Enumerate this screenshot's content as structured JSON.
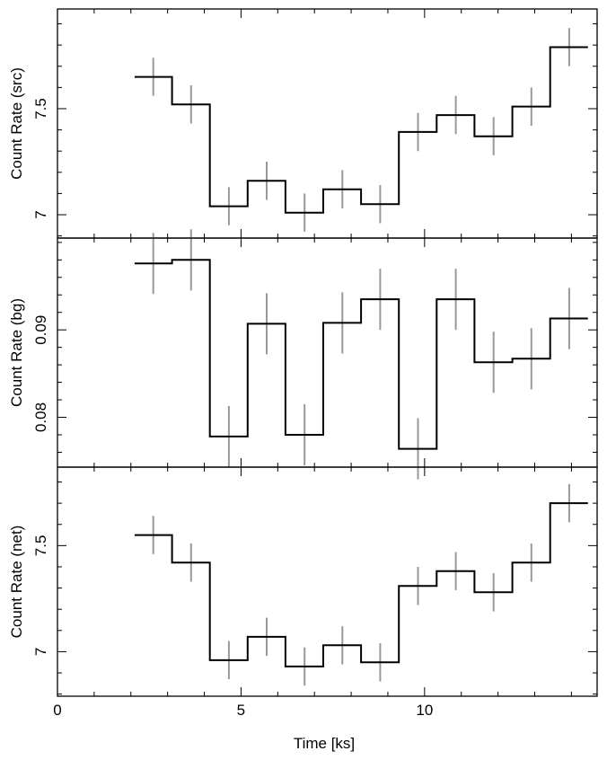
{
  "chart_data": [
    {
      "type": "line",
      "ylabel": "Count Rate (src)",
      "xlim": [
        0,
        14.7
      ],
      "ylim": [
        6.89,
        7.97
      ],
      "yticks": [
        7,
        7.5
      ],
      "ytick_labels": [
        "7",
        "7.5"
      ],
      "x": [
        2.61,
        3.64,
        4.67,
        5.7,
        6.73,
        7.76,
        8.79,
        9.82,
        10.85,
        11.88,
        12.91,
        13.94
      ],
      "bin_edges": [
        2.1,
        3.12,
        4.15,
        5.18,
        6.21,
        7.24,
        8.27,
        9.3,
        10.33,
        11.36,
        12.39,
        13.42,
        14.45
      ],
      "values": [
        7.65,
        7.52,
        7.04,
        7.16,
        7.01,
        7.12,
        7.05,
        7.39,
        7.47,
        7.37,
        7.51,
        7.79
      ],
      "errors": [
        0.09,
        0.09,
        0.09,
        0.09,
        0.09,
        0.09,
        0.09,
        0.09,
        0.09,
        0.09,
        0.09,
        0.09
      ]
    },
    {
      "type": "line",
      "ylabel": "Count Rate (bg)",
      "xlim": [
        0,
        14.7
      ],
      "ylim": [
        0.0743,
        0.1005
      ],
      "yticks": [
        0.08,
        0.09
      ],
      "ytick_labels": [
        "0.08",
        "0.09"
      ],
      "x": [
        2.61,
        3.64,
        4.67,
        5.7,
        6.73,
        7.76,
        8.79,
        9.82,
        10.85,
        11.88,
        12.91,
        13.94
      ],
      "bin_edges": [
        2.1,
        3.12,
        4.15,
        5.18,
        6.21,
        7.24,
        8.27,
        9.3,
        10.33,
        11.36,
        12.39,
        13.42,
        14.45
      ],
      "values": [
        0.0976,
        0.098,
        0.0778,
        0.0907,
        0.078,
        0.0908,
        0.0935,
        0.0764,
        0.0935,
        0.0863,
        0.0867,
        0.0913
      ],
      "errors": [
        0.0035,
        0.0035,
        0.0035,
        0.0035,
        0.0035,
        0.0035,
        0.0035,
        0.0035,
        0.0035,
        0.0035,
        0.0035,
        0.0035
      ]
    },
    {
      "type": "line",
      "ylabel": "Count Rate (net)",
      "xlabel": "Time [ks]",
      "xlim": [
        0,
        14.7
      ],
      "ylim": [
        6.79,
        7.87
      ],
      "xticks": [
        0,
        5,
        10
      ],
      "xtick_labels": [
        "0",
        "5",
        "10"
      ],
      "yticks": [
        7,
        7.5
      ],
      "ytick_labels": [
        "7",
        "7.5"
      ],
      "x": [
        2.61,
        3.64,
        4.67,
        5.7,
        6.73,
        7.76,
        8.79,
        9.82,
        10.85,
        11.88,
        12.91,
        13.94
      ],
      "bin_edges": [
        2.1,
        3.12,
        4.15,
        5.18,
        6.21,
        7.24,
        8.27,
        9.3,
        10.33,
        11.36,
        12.39,
        13.42,
        14.45
      ],
      "values": [
        7.55,
        7.42,
        6.96,
        7.07,
        6.93,
        7.03,
        6.95,
        7.31,
        7.38,
        7.28,
        7.42,
        7.7
      ],
      "errors": [
        0.09,
        0.09,
        0.09,
        0.09,
        0.09,
        0.09,
        0.09,
        0.09,
        0.09,
        0.09,
        0.09,
        0.09
      ]
    }
  ]
}
